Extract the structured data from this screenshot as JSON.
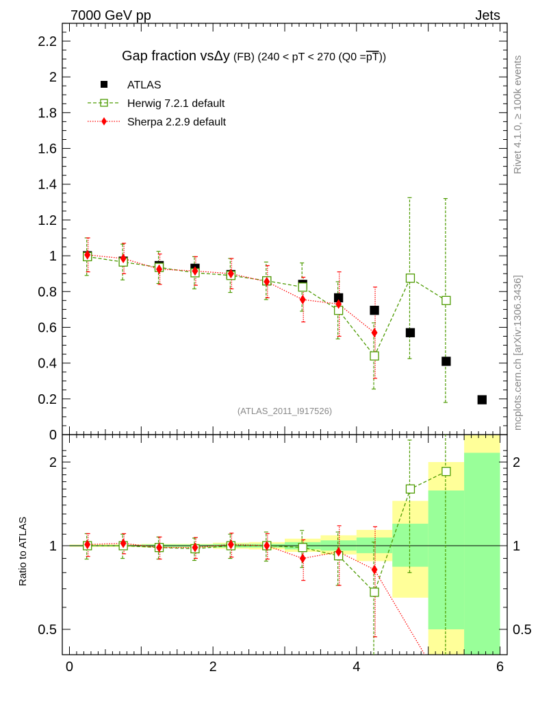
{
  "header": {
    "left": "7000 GeV pp",
    "right": "Jets"
  },
  "side": {
    "top": "Rivet 4.1.0, ≥ 100k events",
    "bottom": "mcplots.cern.ch [arXiv:1306.3436]"
  },
  "chart_data": [
    {
      "id": "main",
      "type": "scatter",
      "title_main": "Gap fraction vsΔy",
      "title_sub": "(FB) (240 < pT < 270 (Q0 =",
      "title_overline": "pT",
      "title_end": "))",
      "watermark": "(ATLAS_2011_I917526)",
      "ylim": [
        0,
        2.3
      ],
      "xlim": [
        -0.1,
        6.1
      ],
      "ytick_labels": [
        "0",
        "0.2",
        "0.4",
        "0.6",
        "0.8",
        "1",
        "1.2",
        "1.4",
        "1.6",
        "1.8",
        "2",
        "2.2"
      ],
      "yticks": [
        0,
        0.2,
        0.4,
        0.6,
        0.8,
        1.0,
        1.2,
        1.4,
        1.6,
        1.8,
        2.0,
        2.2
      ],
      "legend": {
        "placement": "top-left",
        "entries": [
          "ATLAS",
          "Herwig 7.2.1 default",
          "Sherpa 2.2.9 default"
        ]
      },
      "series": [
        {
          "name": "ATLAS",
          "color": "#000000",
          "x": [
            0.25,
            0.75,
            1.25,
            1.75,
            2.25,
            2.75,
            3.25,
            3.75,
            4.25,
            4.75,
            5.25,
            5.75
          ],
          "y": [
            1.0,
            0.97,
            0.945,
            0.93,
            0.895,
            0.86,
            0.84,
            0.765,
            0.695,
            0.57,
            0.41,
            0.195
          ]
        },
        {
          "name": "Herwig 7.2.1 default",
          "color": "#4c9a00",
          "x": [
            0.25,
            0.75,
            1.25,
            1.75,
            2.25,
            2.75,
            3.25,
            3.75,
            4.25,
            4.75,
            5.25
          ],
          "y": [
            0.995,
            0.965,
            0.935,
            0.905,
            0.89,
            0.86,
            0.825,
            0.695,
            0.44,
            0.875,
            0.75
          ],
          "err": [
            0.105,
            0.1,
            0.09,
            0.09,
            0.095,
            0.105,
            0.135,
            0.16,
            0.185,
            0.45,
            0.57
          ]
        },
        {
          "name": "Sherpa 2.2.9 default",
          "color": "#ff0000",
          "x": [
            0.25,
            0.75,
            1.25,
            1.75,
            2.25,
            2.75,
            3.25,
            3.75,
            4.25
          ],
          "y": [
            1.005,
            0.985,
            0.925,
            0.915,
            0.9,
            0.855,
            0.755,
            0.73,
            0.57
          ],
          "err": [
            0.095,
            0.085,
            0.085,
            0.08,
            0.085,
            0.09,
            0.125,
            0.18,
            0.255
          ]
        }
      ]
    },
    {
      "id": "ratio",
      "type": "scatter",
      "ylabel": "Ratio to ATLAS",
      "xlabel": "",
      "ylim": [
        0.35,
        2.3
      ],
      "yscale": "log",
      "xlim": [
        -0.1,
        6.1
      ],
      "ytick_labels": [
        "0.5",
        "1",
        "2"
      ],
      "yticks": [
        0.5,
        1,
        2
      ],
      "xtick_labels": [
        "0",
        "2",
        "4",
        "6"
      ],
      "xticks": [
        0,
        2,
        4,
        6
      ],
      "bands": {
        "x_edges": [
          0,
          0.5,
          1,
          1.5,
          2,
          2.5,
          3,
          3.5,
          4,
          4.5,
          5,
          5.5,
          6
        ],
        "yellow_lo": [
          0.99,
          0.99,
          0.985,
          0.985,
          0.975,
          0.97,
          0.95,
          0.93,
          0.88,
          0.65,
          0.35,
          0.35
        ],
        "yellow_hi": [
          1.01,
          1.01,
          1.015,
          1.015,
          1.025,
          1.03,
          1.06,
          1.09,
          1.14,
          1.45,
          2.0,
          2.5
        ],
        "green_lo": [
          0.995,
          0.995,
          0.99,
          0.99,
          0.985,
          0.985,
          0.97,
          0.96,
          0.94,
          0.84,
          0.5,
          0.35
        ],
        "green_hi": [
          1.005,
          1.005,
          1.01,
          1.01,
          1.015,
          1.015,
          1.03,
          1.045,
          1.07,
          1.2,
          1.58,
          2.16
        ]
      },
      "series": [
        {
          "name": "Herwig 7.2.1 default",
          "color": "#4c9a00",
          "x": [
            0.25,
            0.75,
            1.25,
            1.75,
            2.25,
            2.75,
            3.25,
            3.75,
            4.25,
            4.75,
            5.25
          ],
          "y": [
            1.0,
            1.0,
            0.985,
            0.975,
            1.0,
            1.0,
            0.985,
            0.92,
            0.68,
            1.6,
            1.85
          ],
          "err": [
            0.105,
            0.1,
            0.09,
            0.09,
            0.1,
            0.12,
            0.15,
            0.2,
            0.35,
            0.8,
            1.45
          ]
        },
        {
          "name": "Sherpa 2.2.9 default",
          "color": "#ff0000",
          "x": [
            0.25,
            0.75,
            1.25,
            1.75,
            2.25,
            2.75,
            3.25,
            3.75,
            4.25
          ],
          "y": [
            1.01,
            1.02,
            0.985,
            0.985,
            1.01,
            1.0,
            0.9,
            0.95,
            0.82
          ],
          "err": [
            0.095,
            0.085,
            0.09,
            0.085,
            0.1,
            0.105,
            0.15,
            0.23,
            0.35
          ],
          "trail_x": [
            5.25
          ],
          "trail_y": [
            0.3
          ]
        }
      ]
    }
  ]
}
